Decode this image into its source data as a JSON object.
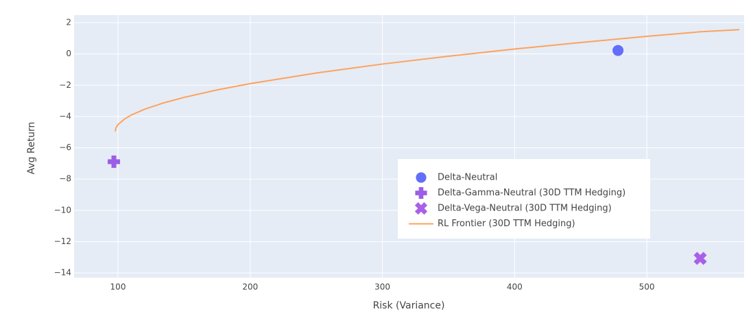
{
  "chart_data": {
    "type": "scatter",
    "x_label": "Risk (Variance)",
    "y_label": "Avg Return",
    "xlim": [
      66.8,
      573.6
    ],
    "ylim": [
      -14.3,
      2.48
    ],
    "xticks": [
      100,
      200,
      300,
      400,
      500
    ],
    "yticks": [
      2,
      0,
      {
        "value": -2,
        "label": "−2"
      },
      {
        "value": -4,
        "label": "−4"
      },
      {
        "value": -6,
        "label": "−6"
      },
      {
        "value": -8,
        "label": "−8"
      },
      {
        "value": -10,
        "label": "−10"
      },
      {
        "value": -12,
        "label": "−12"
      },
      {
        "value": -14,
        "label": "−14"
      }
    ],
    "grid": true,
    "legend_position": "lower right",
    "series": [
      {
        "name": "Delta-Neutral",
        "color": "#636efa",
        "symbol": "circle",
        "x": [
          478.2
        ],
        "values": [
          0.22
        ]
      },
      {
        "name": "Delta-Gamma-Neutral (30D TTM Hedging)",
        "color": "#9b5ee6",
        "symbol": "cross",
        "x": [
          96.9
        ],
        "values": [
          -6.89
        ]
      },
      {
        "name": "Delta-Vega-Neutral (30D TTM Hedging)",
        "color": "#a960e8",
        "symbol": "x",
        "x": [
          540.4
        ],
        "values": [
          -13.07
        ]
      },
      {
        "name": "RL Frontier (30D TTM Hedging)",
        "color": "#ffa15a",
        "symbol": "line",
        "x": [
          97.9,
          98.5,
          100,
          105,
          110,
          120,
          135,
          150,
          175,
          200,
          250,
          300,
          350,
          400,
          450,
          500,
          540,
          570
        ],
        "values": [
          -4.96,
          -4.73,
          -4.52,
          -4.16,
          -3.91,
          -3.54,
          -3.12,
          -2.78,
          -2.3,
          -1.9,
          -1.22,
          -0.65,
          -0.15,
          0.31,
          0.73,
          1.12,
          1.41,
          1.55
        ]
      }
    ]
  }
}
